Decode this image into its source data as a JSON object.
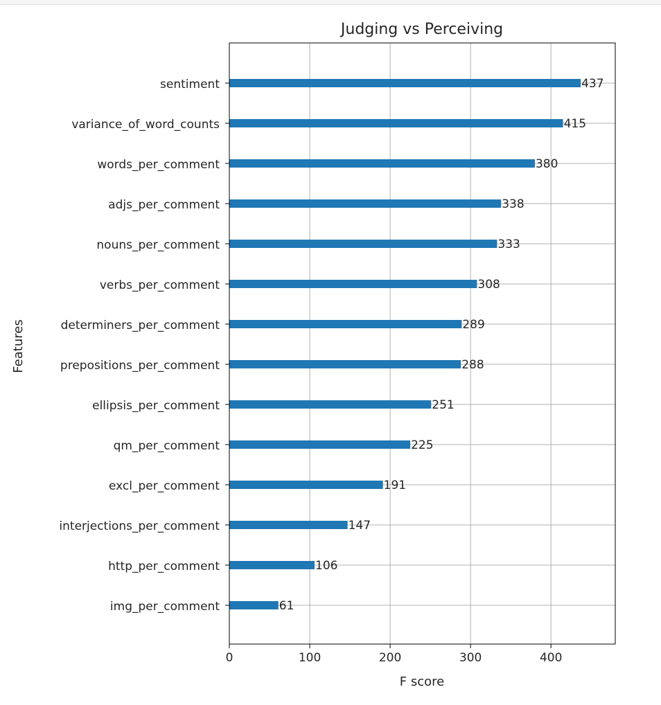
{
  "chart_data": {
    "type": "bar",
    "orientation": "horizontal",
    "title": "Judging vs Perceiving",
    "xlabel": "F score",
    "ylabel": "Features",
    "categories": [
      "sentiment",
      "variance_of_word_counts",
      "words_per_comment",
      "adjs_per_comment",
      "nouns_per_comment",
      "verbs_per_comment",
      "determiners_per_comment",
      "prepositions_per_comment",
      "ellipsis_per_comment",
      "qm_per_comment",
      "excl_per_comment",
      "interjections_per_comment",
      "http_per_comment",
      "img_per_comment"
    ],
    "values": [
      437,
      415,
      380,
      338,
      333,
      308,
      289,
      288,
      251,
      225,
      191,
      147,
      106,
      61
    ],
    "xlim": [
      0,
      480
    ],
    "xticks": [
      0,
      100,
      200,
      300,
      400
    ],
    "grid": true,
    "bar_color": "#1f77b4"
  }
}
